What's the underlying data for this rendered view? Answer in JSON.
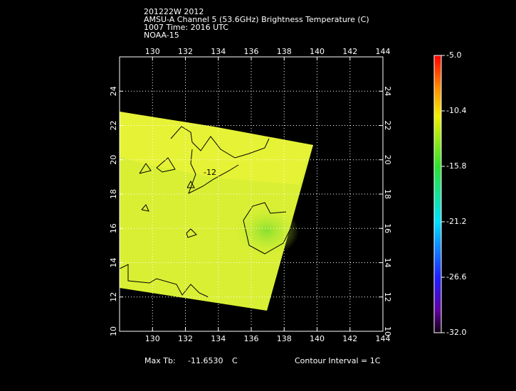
{
  "header": {
    "lines": [
      "201222W 2012",
      "AMSU-A Channel 5 (53.6GHz) Brightness Temperature (C)",
      "1007 Time: 2016 UTC",
      "NOAA-15"
    ]
  },
  "map": {
    "xlim": [
      128,
      144
    ],
    "ylim": [
      10,
      26
    ],
    "xticks": [
      130,
      132,
      134,
      136,
      138,
      140,
      142,
      144
    ],
    "yticks": [
      10,
      12,
      14,
      16,
      18,
      20,
      22,
      24
    ],
    "grid": true,
    "contour_label": "-12"
  },
  "colorbar": {
    "lim": [
      -32,
      -5
    ],
    "ticks": [
      {
        "value": -5,
        "label": "-5.0"
      },
      -10.4,
      -15.8,
      -21.2,
      -26.6,
      {
        "value": -32,
        "label": "-32.0"
      }
    ]
  },
  "footer": {
    "max_tb_label": "Max Tb:",
    "max_tb": "-11.6530",
    "unit": "C",
    "contour_interval": "Contour Interval = 1C"
  }
}
